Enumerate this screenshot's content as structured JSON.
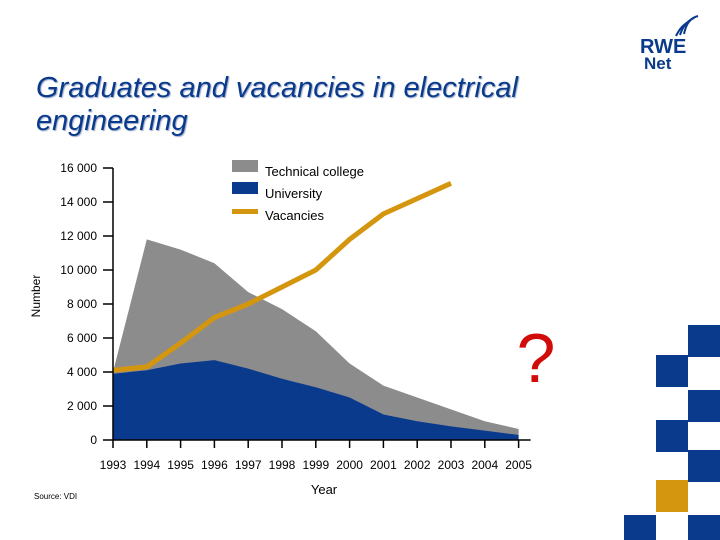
{
  "slide": {
    "title": "Graduates and vacancies in electrical engineering",
    "source": "Source: VDI",
    "logo": {
      "brand": "RWE",
      "sub": "Net",
      "icon": "rwe-swoosh-icon"
    }
  },
  "colors": {
    "technical_college": "#8c8c8c",
    "university": "#0a3a8c",
    "vacancies": "#d4960f",
    "question_mark": "#d10a0a",
    "title": "#0a3a8c",
    "deco_blue": "#0a3a8c",
    "deco_orange": "#d4960f"
  },
  "annotation": {
    "text": "?"
  },
  "chart_data": {
    "type": "area",
    "title": "",
    "xlabel": "Year",
    "ylabel": "Number",
    "ylim": [
      0,
      16000
    ],
    "yticks": [
      0,
      2000,
      4000,
      6000,
      8000,
      10000,
      12000,
      14000,
      16000
    ],
    "ytick_labels": [
      "0",
      "2 000",
      "4 000",
      "6 000",
      "8 000",
      "10 000",
      "12 000",
      "14 000",
      "16 000"
    ],
    "categories": [
      "1993",
      "1994",
      "1995",
      "1996",
      "1997",
      "1998",
      "1999",
      "2000",
      "2001",
      "2002",
      "2003",
      "2004",
      "2005"
    ],
    "legend_position": "top-right",
    "series": [
      {
        "name": "Technical college",
        "kind": "area-total",
        "values": [
          4000,
          11800,
          11200,
          10400,
          8700,
          7700,
          6400,
          4500,
          3200,
          2500,
          1800,
          1100,
          650
        ]
      },
      {
        "name": "University",
        "kind": "area",
        "values": [
          3900,
          4100,
          4500,
          4700,
          4200,
          3600,
          3100,
          2500,
          1500,
          1100,
          800,
          550,
          300
        ]
      },
      {
        "name": "Vacancies",
        "kind": "line",
        "values": [
          4100,
          4300,
          5700,
          7200,
          8000,
          9000,
          10000,
          11800,
          13300,
          14200,
          15100,
          null,
          null
        ]
      }
    ]
  }
}
